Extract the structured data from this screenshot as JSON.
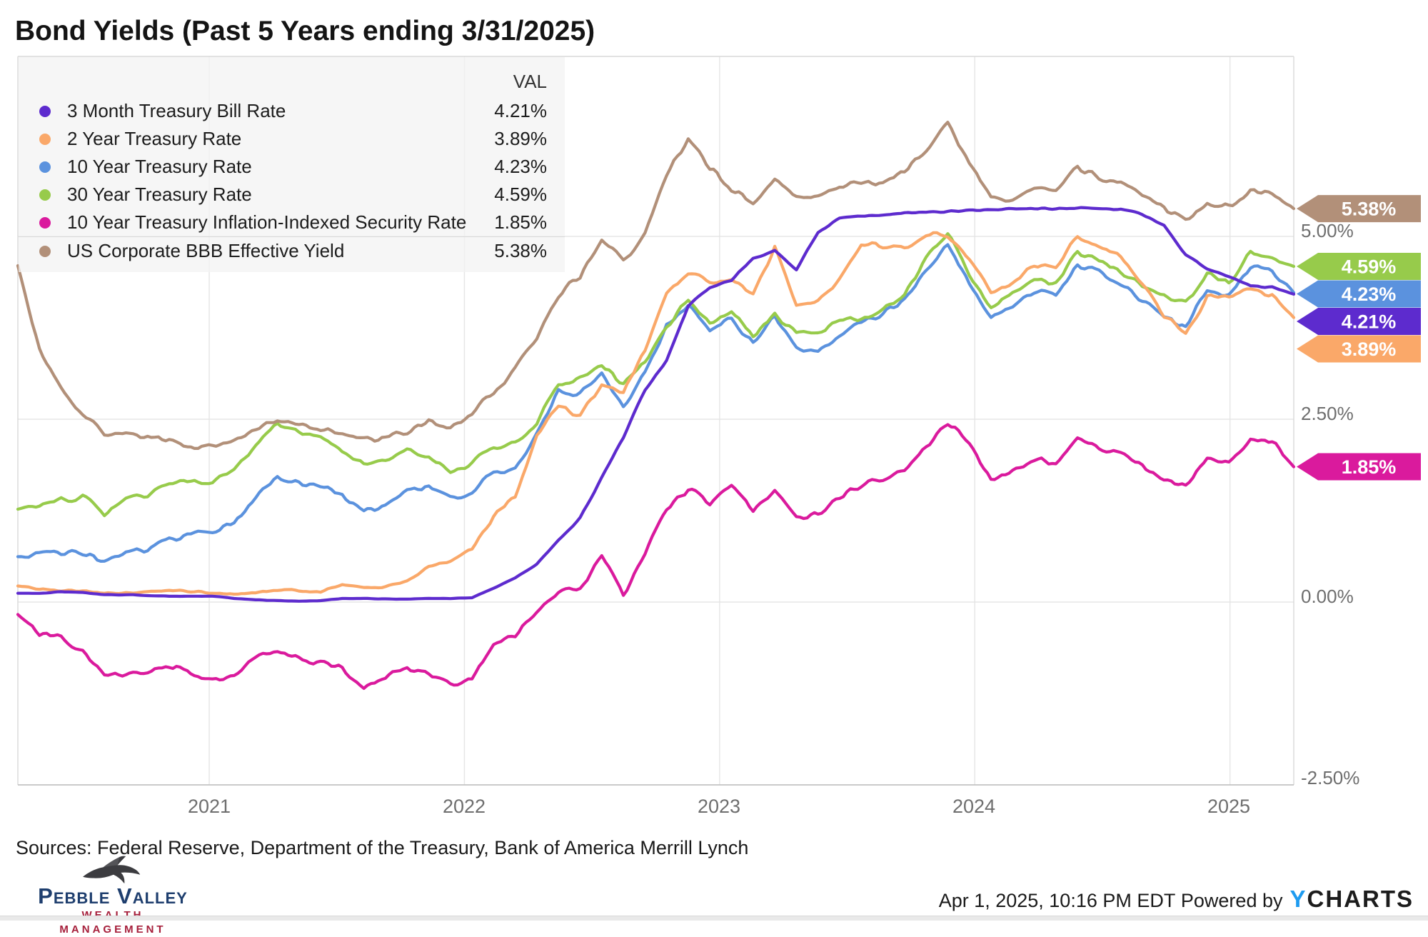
{
  "title": "Bond Yields (Past 5 Years ending 3/31/2025)",
  "legend": {
    "val_header": "VAL",
    "rows": [
      {
        "label": "3 Month Treasury Bill Rate",
        "val": "4.21%"
      },
      {
        "label": "2 Year Treasury Rate",
        "val": "3.89%"
      },
      {
        "label": "10 Year Treasury Rate",
        "val": "4.23%"
      },
      {
        "label": "30 Year Treasury Rate",
        "val": "4.59%"
      },
      {
        "label": "10 Year Treasury Inflation-Indexed Security Rate",
        "val": "1.85%"
      },
      {
        "label": "US Corporate BBB Effective Yield",
        "val": "5.38%"
      }
    ]
  },
  "footer": {
    "sources": "Sources: Federal Reserve, Department of the Treasury, Bank of America Merrill Lynch",
    "timestamp": "Apr 1, 2025, 10:16 PM EDT",
    "powered_by": "Powered by",
    "ycharts_y": "Y",
    "ycharts_rest": "CHARTS"
  },
  "logo": {
    "name": "Pebble Valley",
    "tagline": "Wealth Management"
  },
  "chart_data": {
    "type": "line",
    "title": "Bond Yields (Past 5 Years ending 3/31/2025)",
    "x_unit": "year",
    "frequency": "monthly (Apr 2020 - Mar 31 2025)",
    "x_range": {
      "start": 2020.25,
      "end": 2025.25
    },
    "ylim": [
      -2.5,
      7.46
    ],
    "grid": true,
    "legend_position": "top-left",
    "x_ticks": [
      {
        "label": "2021",
        "year": 2021
      },
      {
        "label": "2022",
        "year": 2022
      },
      {
        "label": "2023",
        "year": 2023
      },
      {
        "label": "2024",
        "year": 2024
      },
      {
        "label": "2025",
        "year": 2025
      }
    ],
    "y_ticks": [
      {
        "label": "5.00%",
        "value": 5.0
      },
      {
        "label": "2.50%",
        "value": 2.5
      },
      {
        "label": "0.00%",
        "value": 0.0
      },
      {
        "label": "-2.50%",
        "value": -2.5
      }
    ],
    "series": [
      {
        "id": "3-month-treasury-bill-rate",
        "name": "3 Month Treasury Bill Rate",
        "color": "#5D2BCE",
        "value": 4.21,
        "value_label": "4.21%",
        "values": [
          0.12,
          0.12,
          0.14,
          0.13,
          0.1,
          0.1,
          0.09,
          0.08,
          0.08,
          0.08,
          0.05,
          0.03,
          0.02,
          0.01,
          0.02,
          0.05,
          0.05,
          0.04,
          0.04,
          0.05,
          0.05,
          0.06,
          0.19,
          0.33,
          0.52,
          0.85,
          1.15,
          1.7,
          2.25,
          2.9,
          3.3,
          4.05,
          4.3,
          4.4,
          4.7,
          4.8,
          4.55,
          5.05,
          5.25,
          5.28,
          5.3,
          5.32,
          5.33,
          5.34,
          5.35,
          5.36,
          5.38,
          5.38,
          5.38,
          5.39,
          5.38,
          5.37,
          5.3,
          5.15,
          4.75,
          4.55,
          4.45,
          4.32,
          4.3,
          4.21
        ]
      },
      {
        "id": "2-year-treasury-rate",
        "name": "2 Year Treasury Rate",
        "color": "#FAA869",
        "value": 3.89,
        "value_label": "3.89%",
        "values": [
          0.22,
          0.18,
          0.16,
          0.15,
          0.12,
          0.13,
          0.14,
          0.16,
          0.15,
          0.12,
          0.11,
          0.13,
          0.16,
          0.16,
          0.14,
          0.25,
          0.19,
          0.21,
          0.28,
          0.48,
          0.57,
          0.73,
          1.18,
          1.44,
          2.28,
          2.7,
          2.56,
          2.95,
          2.88,
          3.45,
          4.22,
          4.5,
          4.38,
          4.4,
          4.21,
          4.85,
          4.05,
          4.12,
          4.4,
          4.9,
          4.88,
          4.85,
          5.05,
          5.0,
          4.7,
          4.25,
          4.35,
          4.62,
          4.6,
          4.98,
          4.88,
          4.72,
          4.36,
          3.91,
          3.65,
          4.17,
          4.2,
          4.25,
          4.2,
          3.89
        ]
      },
      {
        "id": "10-year-treasury-rate",
        "name": "10 Year Treasury Rate",
        "color": "#5B92DE",
        "value": 4.23,
        "value_label": "4.23%",
        "values": [
          0.62,
          0.64,
          0.66,
          0.68,
          0.55,
          0.68,
          0.68,
          0.86,
          0.92,
          0.92,
          1.09,
          1.44,
          1.72,
          1.63,
          1.59,
          1.45,
          1.24,
          1.3,
          1.52,
          1.58,
          1.43,
          1.52,
          1.78,
          1.83,
          2.32,
          2.89,
          2.85,
          3.1,
          2.67,
          3.15,
          3.8,
          4.05,
          3.7,
          3.88,
          3.52,
          3.92,
          3.48,
          3.44,
          3.64,
          3.82,
          3.96,
          4.11,
          4.57,
          4.9,
          4.35,
          3.88,
          4.02,
          4.25,
          4.2,
          4.62,
          4.5,
          4.36,
          4.1,
          3.91,
          3.75,
          4.28,
          4.18,
          4.57,
          4.54,
          4.23
        ]
      },
      {
        "id": "30-year-treasury-rate",
        "name": "30 Year Treasury Rate",
        "color": "#97CB4B",
        "value": 4.59,
        "value_label": "4.59%",
        "values": [
          1.27,
          1.32,
          1.41,
          1.43,
          1.2,
          1.42,
          1.46,
          1.63,
          1.65,
          1.66,
          1.83,
          2.15,
          2.41,
          2.3,
          2.28,
          2.06,
          1.89,
          1.93,
          2.08,
          1.98,
          1.79,
          1.9,
          2.11,
          2.17,
          2.45,
          2.95,
          3.07,
          3.25,
          2.98,
          3.29,
          3.78,
          4.13,
          3.8,
          3.97,
          3.65,
          3.93,
          3.67,
          3.7,
          3.86,
          3.86,
          4.01,
          4.2,
          4.7,
          5.05,
          4.5,
          4.03,
          4.22,
          4.38,
          4.35,
          4.77,
          4.65,
          4.51,
          4.3,
          4.2,
          4.08,
          4.48,
          4.36,
          4.78,
          4.68,
          4.59
        ]
      },
      {
        "id": "10-year-treasury-inflation-indexed-security-rate",
        "name": "10 Year Treasury Inflation-Indexed Security Rate",
        "color": "#DA1A9D",
        "value": 1.85,
        "value_label": "1.85%",
        "values": [
          -0.17,
          -0.45,
          -0.47,
          -0.68,
          -1.0,
          -1.0,
          -0.94,
          -0.87,
          -0.97,
          -1.06,
          -1.0,
          -0.77,
          -0.66,
          -0.77,
          -0.84,
          -0.88,
          -1.16,
          -1.03,
          -0.9,
          -0.96,
          -1.11,
          -1.04,
          -0.61,
          -0.45,
          -0.1,
          0.12,
          0.18,
          0.67,
          0.12,
          0.67,
          1.28,
          1.55,
          1.35,
          1.58,
          1.25,
          1.52,
          1.15,
          1.22,
          1.45,
          1.62,
          1.67,
          1.84,
          2.1,
          2.46,
          2.15,
          1.72,
          1.8,
          1.95,
          1.88,
          2.26,
          2.12,
          2.06,
          1.86,
          1.7,
          1.6,
          1.95,
          1.9,
          2.24,
          2.2,
          1.85
        ]
      },
      {
        "id": "us-corporate-bbb-effective-yield",
        "name": "US Corporate BBB Effective Yield",
        "color": "#B29079",
        "value": 5.38,
        "value_label": "5.38%",
        "values": [
          4.6,
          3.45,
          2.95,
          2.55,
          2.3,
          2.3,
          2.28,
          2.22,
          2.12,
          2.12,
          2.18,
          2.35,
          2.48,
          2.4,
          2.38,
          2.3,
          2.22,
          2.25,
          2.32,
          2.45,
          2.42,
          2.58,
          2.85,
          3.2,
          3.6,
          4.2,
          4.45,
          4.95,
          4.65,
          5.05,
          5.85,
          6.35,
          5.95,
          5.65,
          5.45,
          5.75,
          5.58,
          5.52,
          5.7,
          5.72,
          5.7,
          5.88,
          6.15,
          6.55,
          6.0,
          5.55,
          5.5,
          5.68,
          5.62,
          5.92,
          5.8,
          5.72,
          5.55,
          5.38,
          5.22,
          5.45,
          5.42,
          5.62,
          5.6,
          5.38
        ]
      }
    ]
  }
}
